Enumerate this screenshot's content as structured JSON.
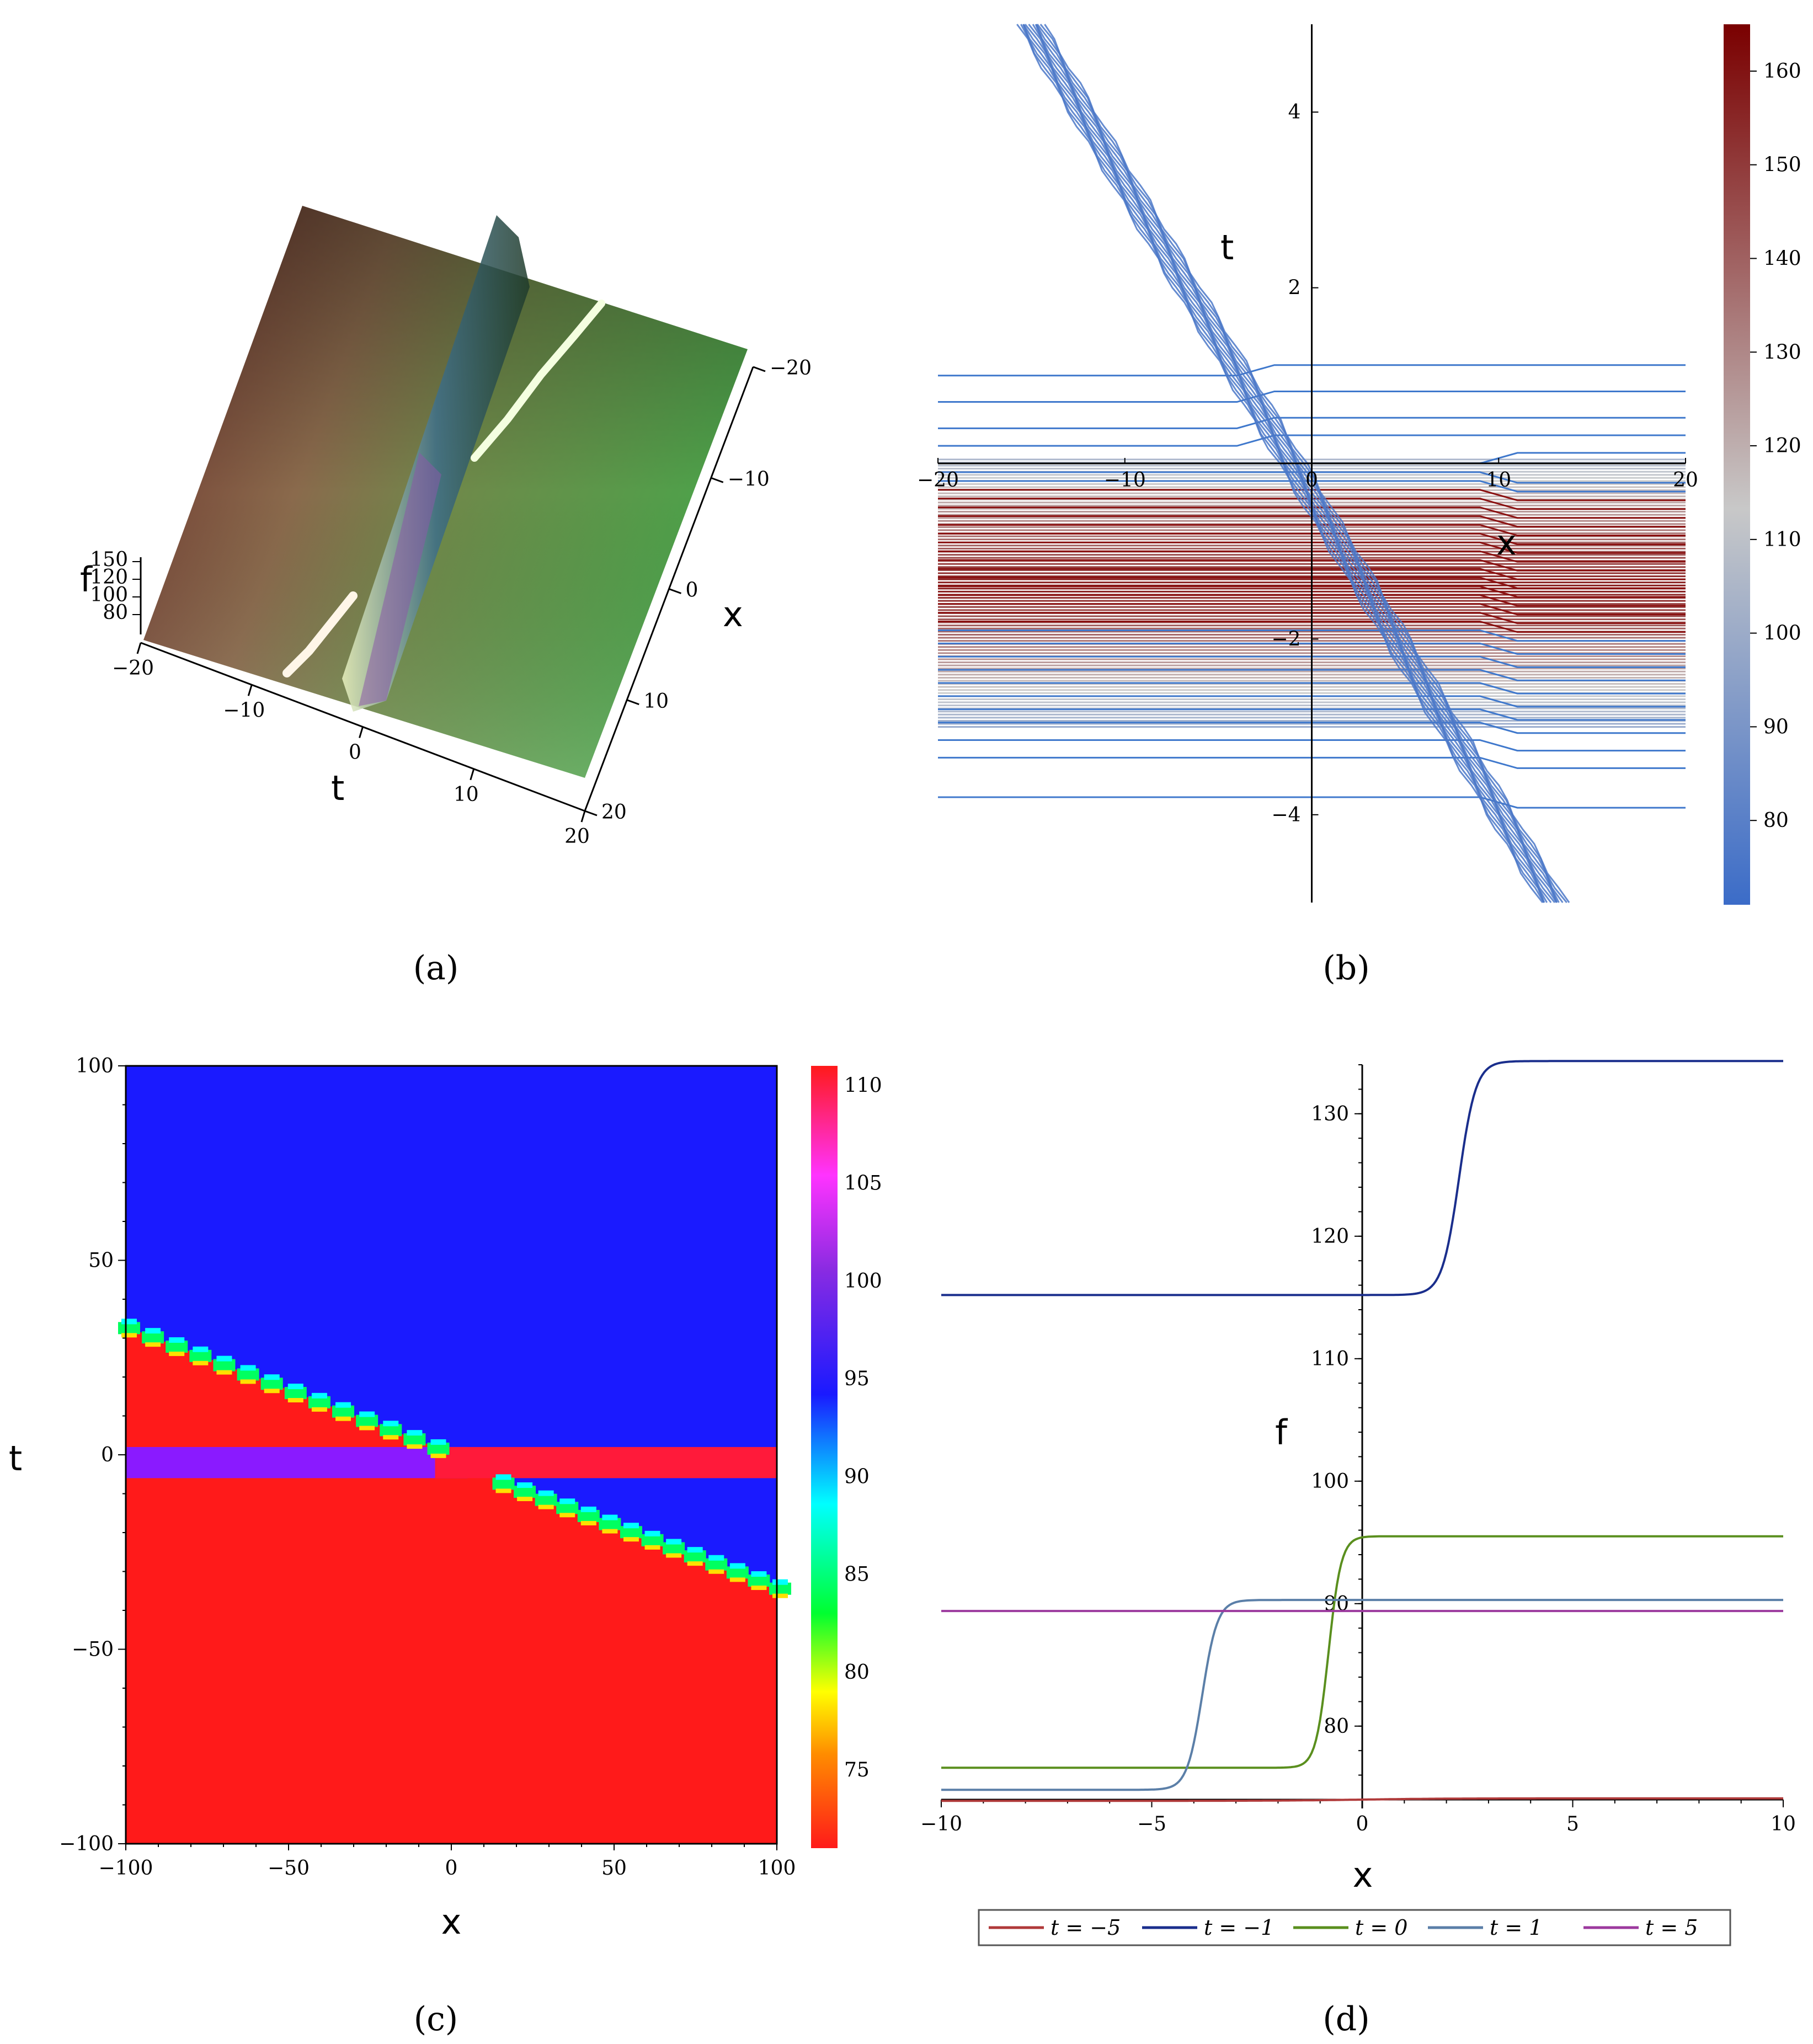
{
  "captions": [
    "(a)",
    "(b)",
    "(c)",
    "(d)"
  ],
  "chart_data": [
    {
      "panel": "a",
      "type": "surface3d",
      "xlabel": "x",
      "ylabel": "t",
      "zlabel": "f",
      "x_ticks": [
        "−20",
        "−10",
        "0",
        "10",
        "20"
      ],
      "t_ticks": [
        "−20",
        "−10",
        "0",
        "10",
        "20"
      ],
      "z_ticks": [
        "150",
        "120",
        "100",
        "80"
      ],
      "xlim": [
        -20,
        20
      ],
      "tlim": [
        -20,
        20
      ]
    },
    {
      "panel": "b",
      "type": "contour",
      "xlabel": "x",
      "ylabel": "t",
      "xlim": [
        -20,
        20
      ],
      "ylim": [
        -5,
        5
      ],
      "x_ticks": [
        "−20",
        "−10",
        "0",
        "10",
        "20"
      ],
      "x_tick_values": [
        -20,
        -10,
        0,
        10,
        20
      ],
      "y_ticks": [
        "4",
        "2",
        "−2",
        "−4"
      ],
      "y_tick_values": [
        4,
        2,
        -2,
        -4
      ],
      "colorbar": {
        "range": [
          71,
          165
        ],
        "ticks": [
          "160",
          "150",
          "140",
          "130",
          "120",
          "110",
          "100",
          "90",
          "80"
        ],
        "tick_values": [
          160,
          150,
          140,
          130,
          120,
          110,
          100,
          90,
          80
        ],
        "colors": [
          "#3b6cc8",
          "#c8c8c8",
          "#7a0000"
        ]
      },
      "contour_levels_t": [
        -3.8,
        -3.35,
        -3.15,
        -2.95,
        -2.8,
        -2.65,
        -2.5,
        -2.35,
        -2.2,
        -2.05,
        -1.9,
        -1.8,
        -1.7,
        -1.6,
        -1.5,
        -1.4,
        -1.3,
        -1.2,
        -1.1,
        -1.0,
        -0.9,
        -0.8,
        -0.7,
        -0.6,
        -0.5,
        -0.4,
        -0.3,
        -0.2,
        -0.1,
        0.0,
        0.2,
        0.4,
        0.7,
        1.0
      ],
      "diagonal_band": {
        "from": [
          -15,
          5
        ],
        "to": [
          13,
          -5
        ]
      }
    },
    {
      "panel": "c",
      "type": "heatmap",
      "xlabel": "x",
      "ylabel": "t",
      "xlim": [
        -100,
        100
      ],
      "ylim": [
        -100,
        100
      ],
      "x_ticks": [
        "−100",
        "−50",
        "0",
        "50",
        "100"
      ],
      "x_tick_values": [
        -100,
        -50,
        0,
        50,
        100
      ],
      "y_ticks": [
        "100",
        "50",
        "0",
        "−50",
        "−100"
      ],
      "y_tick_values": [
        100,
        50,
        0,
        -50,
        -100
      ],
      "colorbar": {
        "range": [
          71,
          111
        ],
        "ticks": [
          "110",
          "105",
          "100",
          "95",
          "90",
          "85",
          "80",
          "75"
        ],
        "tick_values": [
          110,
          105,
          100,
          95,
          90,
          85,
          80,
          75
        ]
      },
      "regions": {
        "upper_value": 96,
        "lower_value": 71,
        "strip_left_value": 100,
        "strip_right_value": 111
      },
      "boundary_left": {
        "from": [
          -100,
          33
        ],
        "to": [
          -5,
          2
        ]
      },
      "boundary_right": {
        "from": [
          15,
          -7
        ],
        "to": [
          100,
          -34
        ]
      },
      "strip_t": [
        -6,
        2
      ]
    },
    {
      "panel": "d",
      "type": "line",
      "xlabel": "x",
      "ylabel": "f",
      "xlim": [
        -10,
        10
      ],
      "ylim": [
        74,
        134
      ],
      "x_ticks": [
        "−10",
        "−5",
        "0",
        "5",
        "10"
      ],
      "x_tick_values": [
        -10,
        -5,
        0,
        5,
        10
      ],
      "y_ticks": [
        "130",
        "120",
        "110",
        "100",
        "90",
        "80"
      ],
      "y_tick_values": [
        130,
        120,
        110,
        100,
        90,
        80
      ],
      "series": [
        {
          "name": "t = −5",
          "color": "#b03a3a",
          "low": 73.9,
          "high": 74.1,
          "center": 0,
          "width": 1
        },
        {
          "name": "t = −1",
          "color": "#1a2e8c",
          "low": 115.2,
          "high": 134.3,
          "center": 2.3,
          "width": 0.2
        },
        {
          "name": "t = 0",
          "color": "#5a8f1e",
          "low": 76.6,
          "high": 95.5,
          "center": -0.8,
          "width": 0.15
        },
        {
          "name": "t = 1",
          "color": "#5b7fa8",
          "low": 74.8,
          "high": 90.3,
          "center": -3.8,
          "width": 0.18
        },
        {
          "name": "t = 5",
          "color": "#9c3a9e",
          "low": 89.4,
          "high": 89.4,
          "center": 0,
          "width": 1
        }
      ]
    }
  ]
}
